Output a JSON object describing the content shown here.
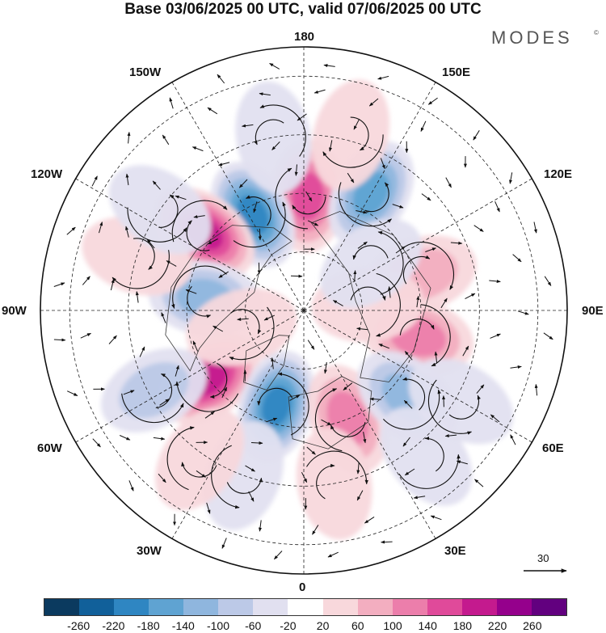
{
  "title": "Base 03/06/2025 00 UTC, valid 07/06/2025 00 UTC",
  "brand": "MODES",
  "brand_mark": "©",
  "longitude_labels": {
    "top": "180",
    "bottom": "0",
    "left": "90W",
    "right": "90E",
    "upper_left_1": "150W",
    "upper_left_2": "120W",
    "upper_right_1": "150E",
    "upper_right_2": "120E",
    "lower_left_1": "60W",
    "lower_left_2": "30W",
    "lower_right_1": "60E",
    "lower_right_2": "30E"
  },
  "wind_scale": {
    "value": "30"
  },
  "colorbar": {
    "colors": [
      "#0b3a5f",
      "#11609a",
      "#2f86c2",
      "#5fa3d2",
      "#8fb6de",
      "#bcc9e7",
      "#e1e0f0",
      "#ffffff",
      "#f8d8dc",
      "#f3aec0",
      "#ec7eab",
      "#e04a9a",
      "#c41a8e",
      "#95008c",
      "#62007f"
    ],
    "ticks": [
      "-260",
      "-220",
      "-180",
      "-140",
      "-100",
      "-60",
      "-20",
      "20",
      "60",
      "100",
      "140",
      "180",
      "220",
      "260"
    ]
  },
  "anomaly_centers": [
    {
      "lon_deg": 178,
      "colat_deg": 39,
      "value": 180
    },
    {
      "lon_deg": -152,
      "colat_deg": 37,
      "value": -200
    },
    {
      "lon_deg": -128,
      "colat_deg": 43,
      "value": 200
    },
    {
      "lon_deg": 150,
      "colat_deg": 46,
      "value": -160
    },
    {
      "lon_deg": 107,
      "colat_deg": 42,
      "value": 80
    },
    {
      "lon_deg": 77,
      "colat_deg": 40,
      "value": 120
    },
    {
      "lon_deg": -97,
      "colat_deg": 34,
      "value": -120
    },
    {
      "lon_deg": -108,
      "colat_deg": 60,
      "value": 70
    },
    {
      "lon_deg": -54,
      "colat_deg": 40,
      "value": 200
    },
    {
      "lon_deg": -16,
      "colat_deg": 34,
      "value": -200
    },
    {
      "lon_deg": 22,
      "colat_deg": 40,
      "value": 120
    },
    {
      "lon_deg": 50,
      "colat_deg": 46,
      "value": -140
    },
    {
      "lon_deg": -62,
      "colat_deg": 58,
      "value": -90
    },
    {
      "lon_deg": 10,
      "colat_deg": 60,
      "value": 60
    },
    {
      "lon_deg": -20,
      "colat_deg": 60,
      "value": -60
    },
    {
      "lon_deg": 95,
      "colat_deg": 22,
      "value": 60
    },
    {
      "lon_deg": -75,
      "colat_deg": 22,
      "value": 50
    },
    {
      "lon_deg": 165,
      "colat_deg": 62,
      "value": 60
    },
    {
      "lon_deg": -170,
      "colat_deg": 60,
      "value": -50
    },
    {
      "lon_deg": 125,
      "colat_deg": 28,
      "value": -60
    },
    {
      "lon_deg": -35,
      "colat_deg": 62,
      "value": 60
    },
    {
      "lon_deg": 40,
      "colat_deg": 65,
      "value": -60
    },
    {
      "lon_deg": -125,
      "colat_deg": 60,
      "value": -60
    },
    {
      "lon_deg": 60,
      "colat_deg": 62,
      "value": -70
    }
  ]
}
